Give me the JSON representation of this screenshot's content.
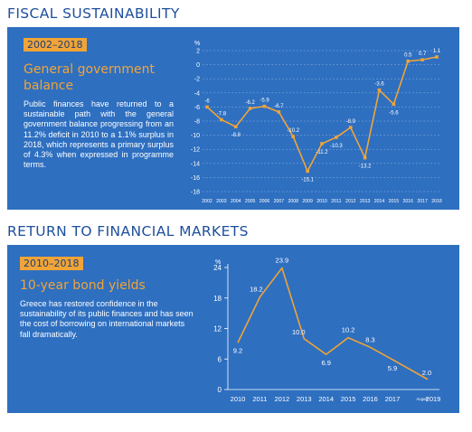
{
  "sections": [
    {
      "title": "FISCAL SUSTAINABILITY",
      "badge": "2002–2018",
      "heading": "General government balance",
      "text": "Public finances have returned to a sustainable path with the general government balance progressing from an 11.2% deficit in 2010 to a 1.1% surplus in 2018, which represents a primary surplus of 4.3% when expressed in programme terms."
    },
    {
      "title": "RETURN TO FINANCIAL MARKETS",
      "badge": "2010–2018",
      "heading": "10-year bond yields",
      "text": "Greece has restored confidence in the sustainability of its public finances and has seen the cost of borrowing on international markets fall dramatically."
    }
  ],
  "colors": {
    "panel": "#2e6fc0",
    "accent": "#f1a437",
    "title": "#1d4f9c",
    "text": "#ffffff"
  },
  "chart_data": [
    {
      "type": "line",
      "unit": "%",
      "categories": [
        "2002",
        "2003",
        "2004",
        "2005",
        "2006",
        "2007",
        "2008",
        "2009",
        "2010",
        "2011",
        "2012",
        "2013",
        "2014",
        "2015",
        "2016",
        "2017",
        "2018"
      ],
      "values": [
        -6,
        -7.8,
        -8.8,
        -6.2,
        -5.9,
        -6.7,
        -10.2,
        -15.1,
        -11.2,
        -10.3,
        -8.9,
        -13.2,
        -3.6,
        -5.6,
        0.5,
        0.7,
        1.1
      ],
      "data_labels": [
        "-6",
        "-7.8",
        "-8.8",
        "-6.2",
        "-5.9",
        "-6.7",
        "-10.2",
        "-15.1",
        "-11.2",
        "-10.3",
        "-8.9",
        "-13.2",
        "-3.6",
        "-5.6",
        "0.5",
        "0.7",
        "1.1"
      ],
      "yticks": [
        "2",
        "0",
        "-2",
        "-4",
        "-6",
        "-8",
        "-10",
        "-12",
        "-14",
        "-16",
        "-18"
      ],
      "ylim": [
        -18,
        2
      ],
      "grid": true
    },
    {
      "type": "line",
      "unit": "%",
      "x": [
        2010,
        2011,
        2012,
        2013,
        2014,
        2015,
        2016,
        2017,
        2018.6
      ],
      "values": [
        9.2,
        18.2,
        23.9,
        10.0,
        6.9,
        10.2,
        8.3,
        5.9,
        2.0
      ],
      "data_labels": [
        "9.2",
        "18.2",
        "23.9",
        "10.0",
        "6.9",
        "10.2",
        "8.3",
        "5.9",
        "2.0"
      ],
      "xticks": [
        "2010",
        "2011",
        "2012",
        "2013",
        "2014",
        "2015",
        "2016",
        "2017",
        "2019"
      ],
      "x_extra_label": "August",
      "yticks": [
        "24",
        "18",
        "12",
        "6",
        "0"
      ],
      "ylim": [
        0,
        24
      ],
      "grid": false
    }
  ]
}
